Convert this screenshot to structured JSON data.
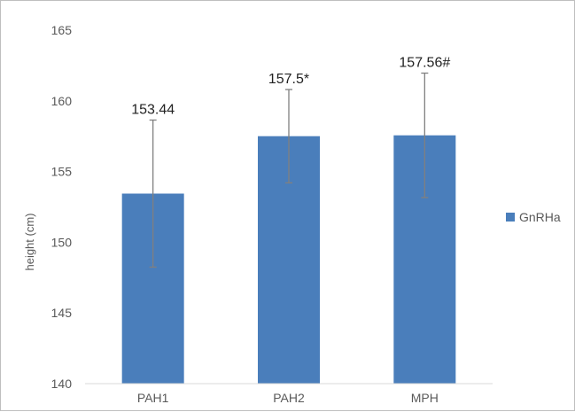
{
  "chart_data": {
    "type": "bar",
    "categories": [
      "PAH1",
      "PAH2",
      "MPH"
    ],
    "series": [
      {
        "name": "GnRHa",
        "values": [
          153.44,
          157.5,
          157.56
        ],
        "error": [
          5.2,
          3.3,
          4.4
        ],
        "data_labels": [
          "153.44",
          "157.5*",
          "157.56#"
        ],
        "color": "#4a7ebb"
      }
    ],
    "ylabel": "height (cm)",
    "xlabel": "",
    "ylim": [
      140,
      165
    ],
    "yticks": [
      "140",
      "145",
      "150",
      "155",
      "160",
      "165"
    ],
    "grid": false,
    "legend": "right"
  }
}
